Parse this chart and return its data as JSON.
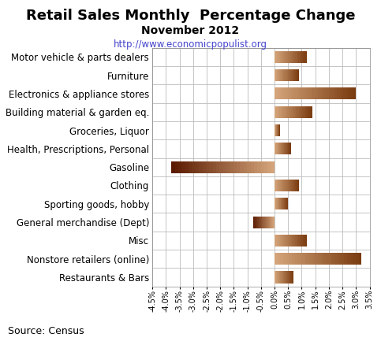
{
  "title": "Retail Sales Monthly  Percentage Change",
  "subtitle": "November 2012",
  "url": "http://www.economicpopulist.org",
  "source": "Source: Census",
  "categories": [
    "Motor vehicle & parts dealers",
    "Furniture",
    "Electronics & appliance stores",
    "Building material & garden eq.",
    "Groceries, Liquor",
    "Health, Prescriptions, Personal",
    "Gasoline",
    "Clothing",
    "Sporting goods, hobby",
    "General merchandise (Dept)",
    "Misc",
    "Nonstore retailers (online)",
    "Restaurants & Bars"
  ],
  "values": [
    1.2,
    0.9,
    3.0,
    1.4,
    0.2,
    0.6,
    -3.8,
    0.9,
    0.5,
    -0.8,
    1.2,
    3.2,
    0.7
  ],
  "xlim": [
    -4.5,
    3.5
  ],
  "xticks": [
    -4.5,
    -4.0,
    -3.5,
    -3.0,
    -2.5,
    -2.0,
    -1.5,
    -1.0,
    -0.5,
    0.0,
    0.5,
    1.0,
    1.5,
    2.0,
    2.5,
    3.0,
    3.5
  ],
  "background_color": "#ffffff",
  "bar_color_positive_light": "#d4a47a",
  "bar_color_positive_dark": "#7a3b10",
  "bar_color_negative_light": "#d4a47a",
  "bar_color_negative_dark": "#5a1a00",
  "grid_color": "#bbbbbb",
  "title_fontsize": 13,
  "subtitle_fontsize": 10,
  "url_fontsize": 8.5,
  "label_fontsize": 8.5,
  "tick_fontsize": 7,
  "source_fontsize": 9
}
